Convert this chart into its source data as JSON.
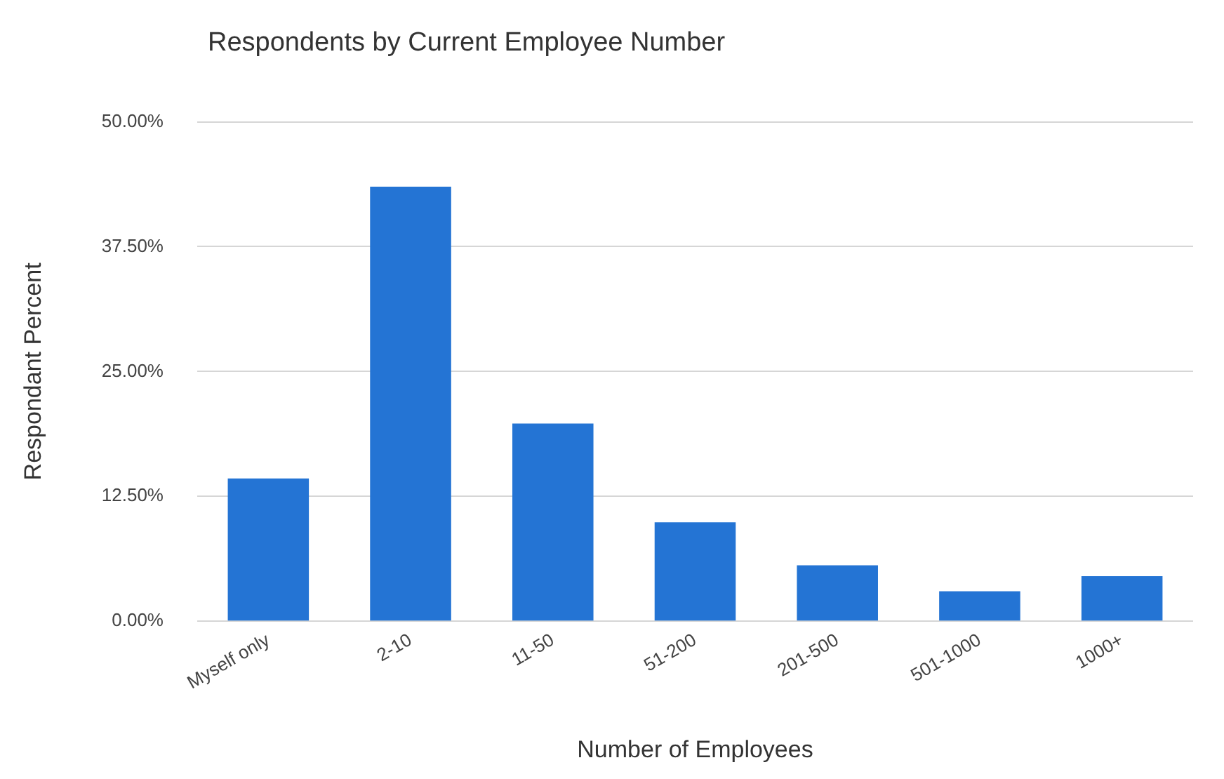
{
  "chart_data": {
    "type": "bar",
    "title": "Respondents by Current Employee Number",
    "xlabel": "Number of Employees",
    "ylabel": "Respondant Percent",
    "categories": [
      "Myself only",
      "2-10",
      "11-50",
      "51-200",
      "201-500",
      "501-1000",
      "1000+"
    ],
    "values": [
      14.3,
      43.5,
      19.8,
      9.9,
      5.6,
      3.0,
      4.5
    ],
    "color": "#2474d4",
    "ylim": [
      0,
      50
    ],
    "yticks": [
      {
        "value": 0,
        "label": "0.00%"
      },
      {
        "value": 12.5,
        "label": "12.50%"
      },
      {
        "value": 25,
        "label": "25.00%"
      },
      {
        "value": 37.5,
        "label": "37.50%"
      },
      {
        "value": 50,
        "label": "50.00%"
      }
    ],
    "grid": "y",
    "legend": false
  }
}
